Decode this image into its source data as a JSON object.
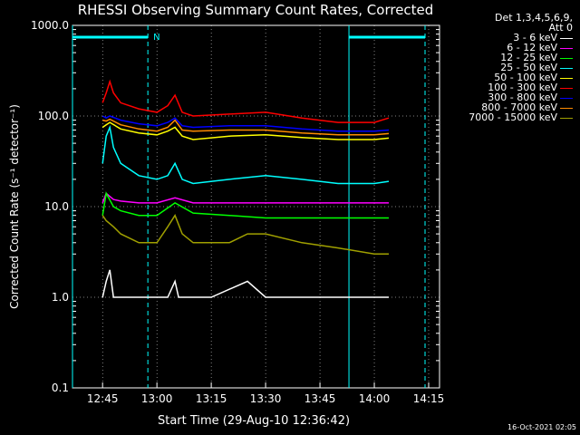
{
  "chart_data": {
    "type": "line",
    "title": "RHESSI Observing Summary Count Rates, Corrected",
    "xlabel": "Start Time (29-Aug-10 12:36:42)",
    "ylabel": "Corrected Count Rate (s⁻¹ detector⁻¹)",
    "y_scale": "log",
    "ylim": [
      0.1,
      1000.0
    ],
    "y_ticks": [
      "0.1",
      "1.0",
      "10.0",
      "100.0",
      "1000.0"
    ],
    "xlim": [
      "12:36:42",
      "14:18:00"
    ],
    "x_ticks": [
      "12:45",
      "13:00",
      "13:15",
      "13:30",
      "13:45",
      "14:00",
      "14:15"
    ],
    "grid": true,
    "legend_header": "Det 1,3,4,5,6,9,\nAtt 0",
    "legend_position": "top-right",
    "series": [
      {
        "name": "3 - 6 keV",
        "color": "#ffffff",
        "x": [
          "12:45",
          "12:46",
          "12:47",
          "12:48",
          "12:50",
          "12:55",
          "13:00",
          "13:03",
          "13:05",
          "13:06",
          "13:08",
          "13:15",
          "13:25",
          "13:30",
          "13:35",
          "13:45",
          "13:55",
          "14:00",
          "14:04"
        ],
        "y": [
          1.0,
          1.5,
          2.0,
          1.0,
          1.0,
          1.0,
          1.0,
          1.0,
          1.5,
          1.0,
          1.0,
          1.0,
          1.5,
          1.0,
          1.0,
          1.0,
          1.0,
          1.0,
          1.0
        ]
      },
      {
        "name": "6 - 12 keV",
        "color": "#ff00ff",
        "x": [
          "12:45",
          "12:46",
          "12:48",
          "12:50",
          "12:55",
          "13:00",
          "13:05",
          "13:10",
          "13:20",
          "13:30",
          "13:40",
          "13:50",
          "14:00",
          "14:04"
        ],
        "y": [
          11.0,
          14.0,
          12.0,
          11.5,
          11.0,
          11.0,
          12.5,
          11.0,
          11.0,
          11.0,
          11.0,
          11.0,
          11.0,
          11.0
        ]
      },
      {
        "name": "12 - 25 keV",
        "color": "#00ff00",
        "x": [
          "12:45",
          "12:46",
          "12:48",
          "12:50",
          "12:55",
          "13:00",
          "13:05",
          "13:10",
          "13:20",
          "13:30",
          "13:40",
          "13:50",
          "14:00",
          "14:04"
        ],
        "y": [
          8.0,
          14.0,
          10.0,
          9.0,
          8.0,
          8.0,
          11.0,
          8.5,
          8.0,
          7.5,
          7.5,
          7.5,
          7.5,
          7.5
        ]
      },
      {
        "name": "25 - 50 keV",
        "color": "#00ffff",
        "x": [
          "12:45",
          "12:46",
          "12:47",
          "12:48",
          "12:50",
          "12:55",
          "13:00",
          "13:03",
          "13:05",
          "13:07",
          "13:10",
          "13:20",
          "13:30",
          "13:40",
          "13:50",
          "14:00",
          "14:04"
        ],
        "y": [
          30.0,
          60.0,
          75.0,
          45.0,
          30.0,
          22.0,
          20.0,
          22.0,
          30.0,
          20.0,
          18.0,
          20.0,
          22.0,
          20.0,
          18.0,
          18.0,
          19.0
        ]
      },
      {
        "name": "50 - 100 keV",
        "color": "#ffff00",
        "x": [
          "12:45",
          "12:46",
          "12:47",
          "12:50",
          "12:55",
          "13:00",
          "13:03",
          "13:05",
          "13:07",
          "13:10",
          "13:20",
          "13:30",
          "13:40",
          "13:50",
          "14:00",
          "14:04"
        ],
        "y": [
          75.0,
          80.0,
          85.0,
          72.0,
          65.0,
          62.0,
          68.0,
          75.0,
          60.0,
          55.0,
          60.0,
          62.0,
          58.0,
          55.0,
          55.0,
          57.0
        ]
      },
      {
        "name": "100 - 300 keV",
        "color": "#ff0000",
        "x": [
          "12:45",
          "12:46",
          "12:47",
          "12:48",
          "12:50",
          "12:55",
          "13:00",
          "13:03",
          "13:05",
          "13:07",
          "13:10",
          "13:20",
          "13:30",
          "13:40",
          "13:50",
          "14:00",
          "14:04"
        ],
        "y": [
          140.0,
          180.0,
          240.0,
          180.0,
          140.0,
          120.0,
          110.0,
          130.0,
          170.0,
          110.0,
          100.0,
          105.0,
          110.0,
          95.0,
          85.0,
          85.0,
          95.0
        ]
      },
      {
        "name": "300 - 800 keV",
        "color": "#0000ff",
        "x": [
          "12:45",
          "12:46",
          "12:47",
          "12:50",
          "12:55",
          "13:00",
          "13:03",
          "13:05",
          "13:07",
          "13:10",
          "13:20",
          "13:30",
          "13:40",
          "13:50",
          "14:00",
          "14:04"
        ],
        "y": [
          100.0,
          95.0,
          100.0,
          90.0,
          82.0,
          78.0,
          85.0,
          95.0,
          78.0,
          75.0,
          78.0,
          78.0,
          72.0,
          68.0,
          68.0,
          70.0
        ]
      },
      {
        "name": "800 - 7000 keV",
        "color": "#ff8c00",
        "x": [
          "12:45",
          "12:46",
          "12:47",
          "12:50",
          "12:55",
          "13:00",
          "13:03",
          "13:05",
          "13:07",
          "13:10",
          "13:20",
          "13:30",
          "13:40",
          "13:50",
          "14:00",
          "14:04"
        ],
        "y": [
          90.0,
          88.0,
          92.0,
          80.0,
          72.0,
          68.0,
          75.0,
          90.0,
          70.0,
          68.0,
          70.0,
          70.0,
          65.0,
          62.0,
          62.0,
          64.0
        ]
      },
      {
        "name": "7000 - 15000 keV",
        "color": "#a0a000",
        "x": [
          "12:45",
          "12:46",
          "12:48",
          "12:50",
          "12:55",
          "13:00",
          "13:03",
          "13:05",
          "13:07",
          "13:10",
          "13:20",
          "13:25",
          "13:30",
          "13:40",
          "13:50",
          "14:00",
          "14:04"
        ],
        "y": [
          8.0,
          7.0,
          6.0,
          5.0,
          4.0,
          4.0,
          6.0,
          8.0,
          5.0,
          4.0,
          4.0,
          5.0,
          5.0,
          4.0,
          3.5,
          3.0,
          3.0
        ]
      }
    ],
    "flags": [
      {
        "label": "N",
        "color": "#00ffff",
        "start": "12:36:42",
        "end": "12:57:30"
      },
      {
        "label": "",
        "color": "#00ffff",
        "start": "13:53:00",
        "end": "14:14:00"
      }
    ],
    "timestamp": "16-Oct-2021 02:05"
  }
}
